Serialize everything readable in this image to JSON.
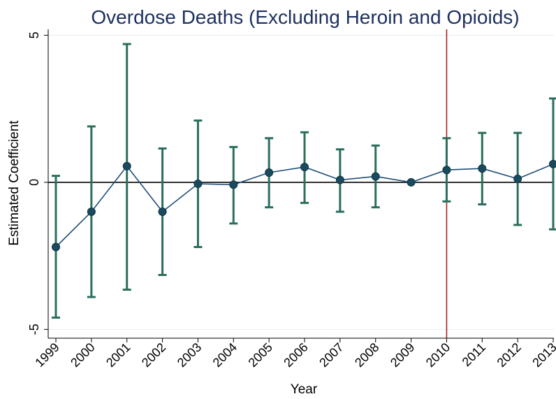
{
  "chart_data": {
    "type": "scatter",
    "title": "Overdose Deaths (Excluding Heroin and Opioids)",
    "xlabel": "Year",
    "ylabel": "Estimated Coefficient",
    "x": [
      "1999",
      "2000",
      "2001",
      "2002",
      "2003",
      "2004",
      "2005",
      "2006",
      "2007",
      "2008",
      "2009",
      "2010",
      "2011",
      "2012",
      "2013"
    ],
    "y_ticks": [
      "5",
      "0",
      "-5"
    ],
    "ylim": [
      -5.3,
      5.2
    ],
    "series": [
      {
        "values": [
          -2.2,
          -1.0,
          0.55,
          -1.0,
          -0.05,
          -0.08,
          0.33,
          0.52,
          0.08,
          0.2,
          0.0,
          0.42,
          0.47,
          0.12,
          0.62
        ],
        "ci_lower": [
          -4.6,
          -3.9,
          -3.65,
          -3.15,
          -2.2,
          -1.4,
          -0.85,
          -0.7,
          -1.0,
          -0.85,
          0.0,
          -0.65,
          -0.75,
          -1.45,
          -1.6
        ],
        "ci_upper": [
          0.22,
          1.9,
          4.7,
          1.15,
          2.1,
          1.2,
          1.5,
          1.7,
          1.12,
          1.25,
          0.0,
          1.5,
          1.68,
          1.68,
          2.85
        ]
      }
    ],
    "reference_lines": {
      "horizontal_at": 0,
      "vertical_at_year": "2010"
    },
    "grid": {
      "y": true,
      "x": false
    },
    "colors": {
      "marker": "#1a4a5e",
      "connect_line": "#1f4e79",
      "error_bar": "#2a6e5e",
      "vertical_line": "#a82323",
      "zero_line": "#000000",
      "grid": "#e6eef0",
      "title": "#1c2f5e"
    }
  }
}
